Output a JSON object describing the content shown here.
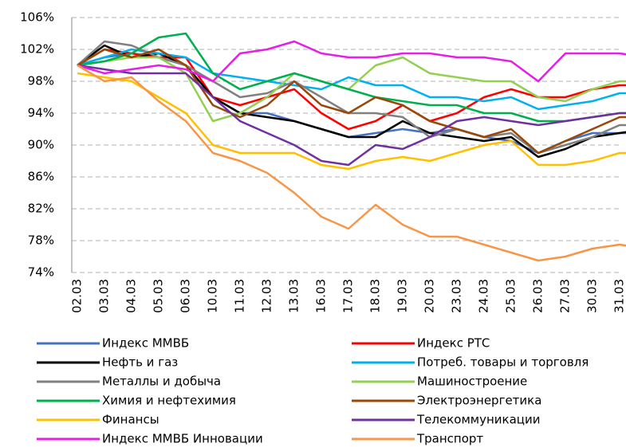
{
  "chart_data": {
    "type": "line",
    "categories": [
      "02.03",
      "03.03",
      "04.03",
      "05.03",
      "06.03",
      "10.03",
      "11.03",
      "12.03",
      "13.03",
      "16.03",
      "17.03",
      "18.03",
      "19.03",
      "20.03",
      "23.03",
      "24.03",
      "25.03",
      "26.03",
      "27.03",
      "30.03",
      "31.03",
      null
    ],
    "ylim": [
      74,
      106
    ],
    "yticks": [
      {
        "value": 74,
        "label": "74%"
      },
      {
        "value": 78,
        "label": "78%"
      },
      {
        "value": 82,
        "label": "82%"
      },
      {
        "value": 86,
        "label": "86%"
      },
      {
        "value": 90,
        "label": "90%"
      },
      {
        "value": 94,
        "label": "94%"
      },
      {
        "value": 98,
        "label": "98%"
      },
      {
        "value": 102,
        "label": "102%"
      },
      {
        "value": 106,
        "label": "106%"
      }
    ],
    "grid": true,
    "series": [
      {
        "name": "Индекс ММВБ",
        "color": "#4472c4",
        "values": [
          100,
          101,
          101.5,
          101,
          100,
          96,
          94,
          94,
          93,
          92,
          91,
          91.5,
          92,
          91.5,
          92,
          91,
          90.5,
          89,
          90.5,
          91.5,
          91.5,
          91.5
        ]
      },
      {
        "name": "Индекс РТС",
        "color": "#ff0000",
        "values": [
          100,
          102,
          101.5,
          101,
          101,
          96,
          95,
          96,
          97,
          94,
          92,
          93,
          95,
          93,
          94,
          96,
          97,
          96,
          96,
          97,
          97.5,
          97.5
        ]
      },
      {
        "name": "Нефть и газ",
        "color": "#000000",
        "values": [
          100,
          102.5,
          101,
          101.5,
          100,
          96,
          94,
          93.5,
          93,
          92,
          91,
          91,
          93,
          91.5,
          91,
          90.5,
          91,
          88.5,
          89.5,
          91,
          91.5,
          92
        ]
      },
      {
        "name": "Потреб. товары и торговля",
        "color": "#00b0f0",
        "values": [
          100,
          101,
          102,
          101.5,
          101,
          99,
          98.5,
          98,
          97.5,
          97,
          98.5,
          97.5,
          97.5,
          96,
          96,
          95.5,
          96,
          94.5,
          95,
          95.5,
          96.5,
          96.5
        ]
      },
      {
        "name": "Металлы и добыча",
        "color": "#808080",
        "values": [
          100,
          103,
          102.5,
          101,
          100,
          98,
          96,
          96.5,
          98,
          96,
          94,
          94,
          93.5,
          91,
          92,
          91,
          91.5,
          89,
          90,
          91,
          92.5,
          92.5
        ]
      },
      {
        "name": "Машиностроение",
        "color": "#92d050",
        "values": [
          100,
          100.5,
          101,
          101,
          99,
          93,
          94,
          96,
          99,
          98,
          97,
          100,
          101,
          99,
          98.5,
          98,
          98,
          96,
          95.5,
          97,
          98,
          98
        ]
      },
      {
        "name": "Химия  и нефтехимия",
        "color": "#00b050",
        "values": [
          100,
          100.5,
          101.5,
          103.5,
          104,
          99,
          97,
          98,
          99,
          98,
          97,
          96,
          95.5,
          95,
          95,
          94,
          94,
          93,
          93,
          93.5,
          94,
          94
        ]
      },
      {
        "name": "Электроэнергетика",
        "color": "#984807",
        "values": [
          100,
          102,
          101,
          102,
          100,
          95,
          93.5,
          95,
          98,
          95,
          94,
          96,
          95,
          93,
          92,
          91,
          92,
          89,
          90.5,
          92,
          93.5,
          93.5
        ]
      },
      {
        "name": "Финансы",
        "color": "#ffc000",
        "values": [
          99,
          98.5,
          98,
          96,
          94,
          90,
          89,
          89,
          89,
          87.5,
          87,
          88,
          88.5,
          88,
          89,
          90,
          90.5,
          87.5,
          87.5,
          88,
          89,
          89
        ]
      },
      {
        "name": "Телекоммуникации",
        "color": "#7030a0",
        "values": [
          100,
          99.5,
          99,
          99,
          99,
          96,
          93,
          91.5,
          90,
          88,
          87.5,
          90,
          89.5,
          91,
          93,
          93.5,
          93,
          92.5,
          93,
          93.5,
          94,
          94
        ]
      },
      {
        "name": "Индекс ММВБ Инновации",
        "color": "#e61ee6",
        "values": [
          100,
          99,
          99.5,
          100,
          99.5,
          98,
          101.5,
          102,
          103,
          101.5,
          101,
          101,
          101.5,
          101.5,
          101,
          101,
          100.5,
          98,
          101.5,
          101.5,
          101.5,
          101
        ]
      },
      {
        "name": "Транспорт",
        "color": "#f79646",
        "values": [
          100,
          98,
          98.5,
          95.5,
          93,
          89,
          88,
          86.5,
          84,
          81,
          79.5,
          82.5,
          80,
          78.5,
          78.5,
          77.5,
          76.5,
          75.5,
          76,
          77,
          77.5,
          77
        ]
      }
    ]
  }
}
